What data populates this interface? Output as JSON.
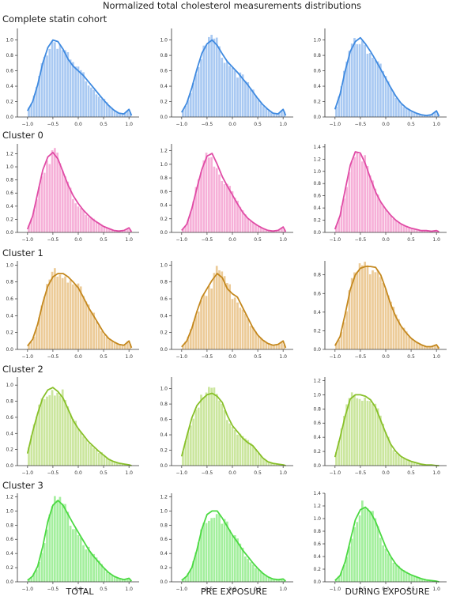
{
  "title": "Normalized total cholesterol measurements distributions",
  "row_labels": [
    "Complete statin cohort",
    "Cluster 0",
    "Cluster 1",
    "Cluster 2",
    "Cluster 3"
  ],
  "col_labels": [
    "TOTAL",
    "PRE EXPOSURE",
    "DURING EXPOSURE"
  ],
  "colors": {
    "row0_hist": "#a9c9f2",
    "row0_line": "#3f8ae0",
    "row1_hist": "#f6b0d8",
    "row1_line": "#e04ca6",
    "row2_hist": "#eccb98",
    "row2_line": "#c4881e",
    "row3_hist": "#cbe69e",
    "row3_line": "#88c02a",
    "row4_hist": "#a4ef9e",
    "row4_line": "#4cd943"
  },
  "chart_data": [
    {
      "type": "area",
      "row": 0,
      "col": 0,
      "xlim": [
        -1.2,
        1.2
      ],
      "ylim": [
        0,
        1.15
      ],
      "xticks": [
        -1.0,
        -0.5,
        0.0,
        0.5,
        1.0
      ],
      "yticks": [
        0.0,
        0.2,
        0.4,
        0.6,
        0.8,
        1.0
      ],
      "x": [
        -1.0,
        -0.9,
        -0.8,
        -0.7,
        -0.6,
        -0.5,
        -0.4,
        -0.3,
        -0.2,
        -0.1,
        0.0,
        0.1,
        0.2,
        0.3,
        0.4,
        0.5,
        0.6,
        0.7,
        0.8,
        0.9,
        1.0,
        1.05
      ],
      "y": [
        0.08,
        0.2,
        0.42,
        0.7,
        0.9,
        1.0,
        0.98,
        0.88,
        0.75,
        0.66,
        0.6,
        0.54,
        0.46,
        0.38,
        0.3,
        0.22,
        0.15,
        0.09,
        0.05,
        0.04,
        0.1,
        0.02
      ]
    },
    {
      "type": "area",
      "row": 0,
      "col": 1,
      "xlim": [
        -1.2,
        1.2
      ],
      "ylim": [
        0,
        1.15
      ],
      "xticks": [
        -1.0,
        -0.5,
        0.0,
        0.5,
        1.0
      ],
      "yticks": [
        0.0,
        0.2,
        0.4,
        0.6,
        0.8,
        1.0
      ],
      "x": [
        -1.0,
        -0.9,
        -0.8,
        -0.7,
        -0.6,
        -0.5,
        -0.4,
        -0.3,
        -0.2,
        -0.1,
        0.0,
        0.1,
        0.2,
        0.3,
        0.4,
        0.5,
        0.6,
        0.7,
        0.8,
        0.9,
        1.0,
        1.05
      ],
      "y": [
        0.06,
        0.18,
        0.38,
        0.62,
        0.83,
        0.95,
        1.0,
        0.93,
        0.82,
        0.72,
        0.65,
        0.58,
        0.5,
        0.42,
        0.33,
        0.24,
        0.16,
        0.1,
        0.05,
        0.04,
        0.1,
        0.02
      ]
    },
    {
      "type": "area",
      "row": 0,
      "col": 2,
      "xlim": [
        -1.2,
        1.2
      ],
      "ylim": [
        0,
        1.15
      ],
      "xticks": [
        -1.0,
        -0.5,
        0.0,
        0.5,
        1.0
      ],
      "yticks": [
        0.0,
        0.2,
        0.4,
        0.6,
        0.8,
        1.0
      ],
      "x": [
        -1.0,
        -0.9,
        -0.8,
        -0.7,
        -0.6,
        -0.5,
        -0.4,
        -0.3,
        -0.2,
        -0.1,
        0.0,
        0.1,
        0.2,
        0.3,
        0.4,
        0.5,
        0.6,
        0.7,
        0.8,
        0.9,
        1.0,
        1.05
      ],
      "y": [
        0.1,
        0.3,
        0.6,
        0.85,
        0.98,
        1.03,
        0.95,
        0.85,
        0.74,
        0.62,
        0.5,
        0.38,
        0.27,
        0.18,
        0.12,
        0.08,
        0.05,
        0.03,
        0.02,
        0.03,
        0.08,
        0.01
      ]
    },
    {
      "type": "area",
      "row": 1,
      "col": 0,
      "xlim": [
        -1.2,
        1.2
      ],
      "ylim": [
        0,
        1.35
      ],
      "xticks": [
        -1.0,
        -0.5,
        0.0,
        0.5,
        1.0
      ],
      "yticks": [
        0.0,
        0.2,
        0.4,
        0.6,
        0.8,
        1.0,
        1.2
      ],
      "x": [
        -1.0,
        -0.9,
        -0.8,
        -0.7,
        -0.6,
        -0.5,
        -0.4,
        -0.3,
        -0.2,
        -0.1,
        0.0,
        0.1,
        0.2,
        0.3,
        0.4,
        0.5,
        0.6,
        0.7,
        0.8,
        0.9,
        1.0,
        1.05
      ],
      "y": [
        0.05,
        0.25,
        0.6,
        0.95,
        1.15,
        1.22,
        1.12,
        0.92,
        0.72,
        0.56,
        0.44,
        0.34,
        0.26,
        0.19,
        0.14,
        0.09,
        0.06,
        0.03,
        0.02,
        0.03,
        0.07,
        0.01
      ]
    },
    {
      "type": "area",
      "row": 1,
      "col": 1,
      "xlim": [
        -1.2,
        1.2
      ],
      "ylim": [
        0,
        1.3
      ],
      "xticks": [
        -1.0,
        -0.5,
        0.0,
        0.5,
        1.0
      ],
      "yticks": [
        0.0,
        0.2,
        0.4,
        0.6,
        0.8,
        1.0,
        1.2
      ],
      "x": [
        -1.0,
        -0.9,
        -0.8,
        -0.7,
        -0.6,
        -0.5,
        -0.4,
        -0.3,
        -0.2,
        -0.1,
        0.0,
        0.1,
        0.2,
        0.3,
        0.4,
        0.5,
        0.6,
        0.7,
        0.8,
        0.9,
        1.0,
        1.05
      ],
      "y": [
        0.03,
        0.12,
        0.35,
        0.65,
        0.93,
        1.12,
        1.16,
        1.0,
        0.82,
        0.68,
        0.55,
        0.42,
        0.3,
        0.21,
        0.15,
        0.1,
        0.06,
        0.03,
        0.02,
        0.03,
        0.08,
        0.01
      ]
    },
    {
      "type": "area",
      "row": 1,
      "col": 2,
      "xlim": [
        -1.2,
        1.2
      ],
      "ylim": [
        0,
        1.45
      ],
      "xticks": [
        -1.0,
        -0.5,
        0.0,
        0.5,
        1.0
      ],
      "yticks": [
        0.0,
        0.2,
        0.4,
        0.6,
        0.8,
        1.0,
        1.2,
        1.4
      ],
      "x": [
        -1.0,
        -0.9,
        -0.8,
        -0.7,
        -0.6,
        -0.5,
        -0.4,
        -0.3,
        -0.2,
        -0.1,
        0.0,
        0.1,
        0.2,
        0.3,
        0.4,
        0.5,
        0.6,
        0.7,
        0.8,
        0.9,
        1.0,
        1.05
      ],
      "y": [
        0.05,
        0.28,
        0.7,
        1.1,
        1.32,
        1.3,
        1.12,
        0.88,
        0.66,
        0.5,
        0.38,
        0.28,
        0.2,
        0.14,
        0.1,
        0.07,
        0.05,
        0.03,
        0.03,
        0.02,
        0.03,
        0.01
      ]
    },
    {
      "type": "area",
      "row": 2,
      "col": 0,
      "xlim": [
        -1.2,
        1.2
      ],
      "ylim": [
        0,
        1.05
      ],
      "xticks": [
        -1.0,
        -0.5,
        0.0,
        0.5,
        1.0
      ],
      "yticks": [
        0.0,
        0.2,
        0.4,
        0.6,
        0.8,
        1.0
      ],
      "x": [
        -1.0,
        -0.9,
        -0.8,
        -0.7,
        -0.6,
        -0.5,
        -0.4,
        -0.3,
        -0.2,
        -0.1,
        0.0,
        0.1,
        0.2,
        0.3,
        0.4,
        0.5,
        0.6,
        0.7,
        0.8,
        0.9,
        1.0,
        1.05
      ],
      "y": [
        0.04,
        0.12,
        0.3,
        0.55,
        0.75,
        0.86,
        0.9,
        0.9,
        0.86,
        0.8,
        0.73,
        0.62,
        0.5,
        0.4,
        0.3,
        0.2,
        0.13,
        0.09,
        0.06,
        0.05,
        0.1,
        0.02
      ]
    },
    {
      "type": "area",
      "row": 2,
      "col": 1,
      "xlim": [
        -1.2,
        1.2
      ],
      "ylim": [
        0,
        1.05
      ],
      "xticks": [
        -1.0,
        -0.5,
        0.0,
        0.5,
        1.0
      ],
      "yticks": [
        0.0,
        0.2,
        0.4,
        0.6,
        0.8,
        1.0
      ],
      "x": [
        -1.0,
        -0.9,
        -0.8,
        -0.7,
        -0.6,
        -0.5,
        -0.4,
        -0.3,
        -0.2,
        -0.1,
        0.0,
        0.1,
        0.2,
        0.3,
        0.4,
        0.5,
        0.6,
        0.7,
        0.8,
        0.9,
        1.0,
        1.05
      ],
      "y": [
        0.03,
        0.1,
        0.25,
        0.45,
        0.62,
        0.72,
        0.82,
        0.9,
        0.85,
        0.72,
        0.66,
        0.62,
        0.5,
        0.38,
        0.26,
        0.17,
        0.11,
        0.07,
        0.05,
        0.06,
        0.1,
        0.02
      ]
    },
    {
      "type": "area",
      "row": 2,
      "col": 2,
      "xlim": [
        -1.2,
        1.2
      ],
      "ylim": [
        0,
        0.95
      ],
      "xticks": [
        -1.0,
        -0.5,
        0.0,
        0.5,
        1.0
      ],
      "yticks": [
        0.0,
        0.2,
        0.4,
        0.6,
        0.8
      ],
      "x": [
        -1.0,
        -0.9,
        -0.8,
        -0.7,
        -0.6,
        -0.5,
        -0.4,
        -0.3,
        -0.2,
        -0.1,
        0.0,
        0.1,
        0.2,
        0.3,
        0.4,
        0.5,
        0.6,
        0.7,
        0.8,
        0.9,
        1.0,
        1.05
      ],
      "y": [
        0.04,
        0.14,
        0.38,
        0.64,
        0.8,
        0.87,
        0.89,
        0.89,
        0.88,
        0.8,
        0.65,
        0.48,
        0.35,
        0.25,
        0.18,
        0.12,
        0.08,
        0.05,
        0.03,
        0.03,
        0.05,
        0.01
      ]
    },
    {
      "type": "area",
      "row": 3,
      "col": 0,
      "xlim": [
        -1.2,
        1.2
      ],
      "ylim": [
        0,
        1.1
      ],
      "xticks": [
        -1.0,
        -0.5,
        0.0,
        0.5,
        1.0
      ],
      "yticks": [
        0.0,
        0.2,
        0.4,
        0.6,
        0.8,
        1.0
      ],
      "x": [
        -1.0,
        -0.9,
        -0.8,
        -0.7,
        -0.6,
        -0.5,
        -0.4,
        -0.3,
        -0.2,
        -0.1,
        0.0,
        0.1,
        0.2,
        0.3,
        0.4,
        0.5,
        0.6,
        0.7,
        0.8,
        0.9,
        1.0,
        1.05
      ],
      "y": [
        0.15,
        0.42,
        0.65,
        0.84,
        0.94,
        0.97,
        0.92,
        0.84,
        0.7,
        0.56,
        0.46,
        0.38,
        0.3,
        0.24,
        0.18,
        0.13,
        0.08,
        0.05,
        0.03,
        0.02,
        0.01,
        0.0
      ]
    },
    {
      "type": "area",
      "row": 3,
      "col": 1,
      "xlim": [
        -1.2,
        1.2
      ],
      "ylim": [
        0,
        1.15
      ],
      "xticks": [
        -1.0,
        -0.5,
        0.0,
        0.5,
        1.0
      ],
      "yticks": [
        0.0,
        0.2,
        0.4,
        0.6,
        0.8,
        1.0
      ],
      "x": [
        -1.0,
        -0.9,
        -0.8,
        -0.7,
        -0.6,
        -0.5,
        -0.4,
        -0.3,
        -0.2,
        -0.1,
        0.0,
        0.1,
        0.2,
        0.3,
        0.4,
        0.5,
        0.6,
        0.7,
        0.8,
        0.9,
        1.0,
        1.05
      ],
      "y": [
        0.12,
        0.38,
        0.62,
        0.78,
        0.86,
        0.92,
        0.94,
        0.9,
        0.82,
        0.65,
        0.52,
        0.44,
        0.36,
        0.3,
        0.26,
        0.18,
        0.1,
        0.05,
        0.03,
        0.02,
        0.01,
        0.0
      ]
    },
    {
      "type": "area",
      "row": 3,
      "col": 2,
      "xlim": [
        -1.2,
        1.2
      ],
      "ylim": [
        0,
        1.25
      ],
      "xticks": [
        -1.0,
        -0.5,
        0.0,
        0.5,
        1.0
      ],
      "yticks": [
        0.0,
        0.2,
        0.4,
        0.6,
        0.8,
        1.0,
        1.2
      ],
      "x": [
        -1.0,
        -0.9,
        -0.8,
        -0.7,
        -0.6,
        -0.5,
        -0.4,
        -0.3,
        -0.2,
        -0.1,
        0.0,
        0.1,
        0.2,
        0.3,
        0.4,
        0.5,
        0.6,
        0.7,
        0.8,
        0.9,
        1.0,
        1.05
      ],
      "y": [
        0.12,
        0.4,
        0.7,
        0.94,
        1.0,
        1.0,
        0.98,
        0.93,
        0.82,
        0.64,
        0.46,
        0.3,
        0.2,
        0.13,
        0.09,
        0.06,
        0.04,
        0.02,
        0.01,
        0.01,
        0.0,
        0.0
      ]
    },
    {
      "type": "area",
      "row": 4,
      "col": 0,
      "xlim": [
        -1.2,
        1.2
      ],
      "ylim": [
        0,
        1.25
      ],
      "xticks": [
        -1.0,
        -0.5,
        0.0,
        0.5,
        1.0
      ],
      "yticks": [
        0.0,
        0.2,
        0.4,
        0.6,
        0.8,
        1.0,
        1.2
      ],
      "x": [
        -1.0,
        -0.9,
        -0.8,
        -0.7,
        -0.6,
        -0.5,
        -0.4,
        -0.3,
        -0.2,
        -0.1,
        0.0,
        0.1,
        0.2,
        0.3,
        0.4,
        0.5,
        0.6,
        0.7,
        0.8,
        0.9,
        1.0,
        1.05
      ],
      "y": [
        0.02,
        0.08,
        0.22,
        0.5,
        0.85,
        1.08,
        1.15,
        1.08,
        0.95,
        0.82,
        0.7,
        0.58,
        0.46,
        0.36,
        0.28,
        0.2,
        0.13,
        0.08,
        0.05,
        0.03,
        0.05,
        0.01
      ]
    },
    {
      "type": "area",
      "row": 4,
      "col": 1,
      "xlim": [
        -1.2,
        1.2
      ],
      "ylim": [
        0,
        1.25
      ],
      "xticks": [
        -1.0,
        -0.5,
        0.0,
        0.5,
        1.0
      ],
      "yticks": [
        0.0,
        0.2,
        0.4,
        0.6,
        0.8,
        1.0,
        1.2
      ],
      "x": [
        -1.0,
        -0.9,
        -0.8,
        -0.7,
        -0.6,
        -0.5,
        -0.4,
        -0.3,
        -0.2,
        -0.1,
        0.0,
        0.1,
        0.2,
        0.3,
        0.4,
        0.5,
        0.6,
        0.7,
        0.8,
        0.9,
        1.0,
        1.05
      ],
      "y": [
        0.02,
        0.08,
        0.2,
        0.45,
        0.75,
        0.95,
        1.0,
        1.0,
        0.9,
        0.78,
        0.66,
        0.56,
        0.45,
        0.36,
        0.27,
        0.19,
        0.12,
        0.07,
        0.04,
        0.03,
        0.04,
        0.01
      ]
    },
    {
      "type": "area",
      "row": 4,
      "col": 2,
      "xlim": [
        -1.2,
        1.2
      ],
      "ylim": [
        0,
        1.4
      ],
      "xticks": [
        -1.0,
        -0.5,
        0.0,
        0.5,
        1.0
      ],
      "yticks": [
        0.0,
        0.2,
        0.4,
        0.6,
        0.8,
        1.0,
        1.2,
        1.4
      ],
      "x": [
        -1.0,
        -0.9,
        -0.8,
        -0.7,
        -0.6,
        -0.5,
        -0.4,
        -0.3,
        -0.2,
        -0.1,
        0.0,
        0.1,
        0.2,
        0.3,
        0.4,
        0.5,
        0.6,
        0.7,
        0.8,
        0.9,
        1.0,
        1.05
      ],
      "y": [
        0.02,
        0.1,
        0.32,
        0.65,
        0.98,
        1.14,
        1.18,
        1.1,
        0.95,
        0.75,
        0.55,
        0.4,
        0.28,
        0.2,
        0.15,
        0.11,
        0.08,
        0.05,
        0.03,
        0.02,
        0.01,
        0.0
      ]
    }
  ]
}
